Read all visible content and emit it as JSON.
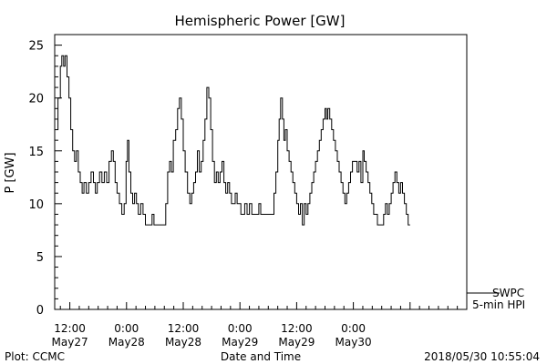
{
  "chart_data": {
    "type": "line",
    "title": "Hemispheric Power [GW]",
    "xlabel": "Date and Time",
    "ylabel": "P [GW]",
    "ylim": [
      0,
      26
    ],
    "yticks": [
      0,
      5,
      10,
      15,
      20,
      25
    ],
    "x_unit": "hours since 2018/05/27 00:00 UT",
    "xlim": [
      8.8,
      96
    ],
    "xticks": [
      {
        "x": 12,
        "time": "12:00",
        "date": "May27"
      },
      {
        "x": 24,
        "time": "0:00",
        "date": "May28"
      },
      {
        "x": 36,
        "time": "12:00",
        "date": "May28"
      },
      {
        "x": 48,
        "time": "0:00",
        "date": "May29"
      },
      {
        "x": 60,
        "time": "12:00",
        "date": "May29"
      },
      {
        "x": 72,
        "time": "0:00",
        "date": "May30"
      }
    ],
    "legend": {
      "position": "bottom-right",
      "line1": "SWPC",
      "line2": "5-min HPI"
    },
    "series": [
      {
        "name": "SWPC 5-min HPI",
        "points": [
          [
            9.0,
            17
          ],
          [
            9.5,
            20
          ],
          [
            10.0,
            23
          ],
          [
            10.3,
            24
          ],
          [
            10.7,
            23
          ],
          [
            11.0,
            24
          ],
          [
            11.4,
            22
          ],
          [
            11.8,
            20
          ],
          [
            12.2,
            17
          ],
          [
            12.6,
            15
          ],
          [
            13.0,
            14
          ],
          [
            13.4,
            15
          ],
          [
            13.8,
            13
          ],
          [
            14.2,
            12
          ],
          [
            14.6,
            11
          ],
          [
            15.0,
            12
          ],
          [
            15.5,
            11
          ],
          [
            16.0,
            12
          ],
          [
            16.5,
            13
          ],
          [
            17.0,
            12
          ],
          [
            17.4,
            11
          ],
          [
            17.8,
            12
          ],
          [
            18.3,
            13
          ],
          [
            18.8,
            12
          ],
          [
            19.3,
            13
          ],
          [
            19.8,
            12
          ],
          [
            20.3,
            14
          ],
          [
            20.8,
            15
          ],
          [
            21.2,
            14
          ],
          [
            21.6,
            12
          ],
          [
            22.0,
            11
          ],
          [
            22.5,
            10
          ],
          [
            23.0,
            9
          ],
          [
            23.5,
            10
          ],
          [
            23.9,
            14
          ],
          [
            24.2,
            16
          ],
          [
            24.5,
            13
          ],
          [
            24.9,
            11
          ],
          [
            25.3,
            10
          ],
          [
            25.7,
            11
          ],
          [
            26.1,
            10
          ],
          [
            26.5,
            9
          ],
          [
            27.0,
            10
          ],
          [
            27.5,
            9
          ],
          [
            28.0,
            8
          ],
          [
            29.0,
            8
          ],
          [
            29.4,
            9
          ],
          [
            29.8,
            8
          ],
          [
            31.0,
            8
          ],
          [
            31.9,
            8
          ],
          [
            32.3,
            10
          ],
          [
            32.7,
            13
          ],
          [
            33.1,
            14
          ],
          [
            33.5,
            13
          ],
          [
            33.9,
            16
          ],
          [
            34.4,
            17
          ],
          [
            34.8,
            19
          ],
          [
            35.2,
            20
          ],
          [
            35.6,
            18
          ],
          [
            36.0,
            15
          ],
          [
            36.4,
            13
          ],
          [
            36.9,
            11
          ],
          [
            37.4,
            10
          ],
          [
            37.8,
            11
          ],
          [
            38.2,
            12
          ],
          [
            38.6,
            13
          ],
          [
            39.0,
            15
          ],
          [
            39.4,
            13
          ],
          [
            39.8,
            14
          ],
          [
            40.2,
            16
          ],
          [
            40.6,
            18
          ],
          [
            41.0,
            21
          ],
          [
            41.4,
            20
          ],
          [
            41.8,
            17
          ],
          [
            42.2,
            14
          ],
          [
            42.6,
            12
          ],
          [
            43.0,
            13
          ],
          [
            43.4,
            12
          ],
          [
            43.8,
            13
          ],
          [
            44.2,
            14
          ],
          [
            44.6,
            12
          ],
          [
            45.0,
            11
          ],
          [
            45.4,
            12
          ],
          [
            45.8,
            11
          ],
          [
            46.2,
            10
          ],
          [
            46.6,
            10
          ],
          [
            47.0,
            11
          ],
          [
            47.4,
            10
          ],
          [
            47.8,
            10
          ],
          [
            48.2,
            9
          ],
          [
            48.6,
            9
          ],
          [
            49.0,
            10
          ],
          [
            49.5,
            9
          ],
          [
            50.0,
            10
          ],
          [
            50.5,
            9
          ],
          [
            51.5,
            9
          ],
          [
            52.0,
            10
          ],
          [
            52.4,
            9
          ],
          [
            53.0,
            9
          ],
          [
            54.5,
            9
          ],
          [
            55.2,
            11
          ],
          [
            55.6,
            13
          ],
          [
            56.0,
            16
          ],
          [
            56.3,
            18
          ],
          [
            56.6,
            20
          ],
          [
            57.0,
            18
          ],
          [
            57.3,
            16
          ],
          [
            57.6,
            17
          ],
          [
            58.0,
            15
          ],
          [
            58.4,
            14
          ],
          [
            58.8,
            13
          ],
          [
            59.2,
            12
          ],
          [
            59.6,
            11
          ],
          [
            60.0,
            10
          ],
          [
            60.4,
            9
          ],
          [
            60.8,
            10
          ],
          [
            61.2,
            8
          ],
          [
            61.6,
            10
          ],
          [
            62.0,
            9
          ],
          [
            62.4,
            10
          ],
          [
            62.8,
            11
          ],
          [
            63.2,
            12
          ],
          [
            63.6,
            13
          ],
          [
            64.0,
            14
          ],
          [
            64.4,
            15
          ],
          [
            64.8,
            16
          ],
          [
            65.2,
            17
          ],
          [
            65.6,
            18
          ],
          [
            66.0,
            19
          ],
          [
            66.3,
            18
          ],
          [
            66.6,
            19
          ],
          [
            67.0,
            18
          ],
          [
            67.4,
            17
          ],
          [
            67.8,
            16
          ],
          [
            68.2,
            15
          ],
          [
            68.6,
            14
          ],
          [
            69.0,
            13
          ],
          [
            69.4,
            12
          ],
          [
            69.8,
            11
          ],
          [
            70.2,
            10
          ],
          [
            70.6,
            11
          ],
          [
            71.0,
            12
          ],
          [
            71.4,
            13
          ],
          [
            71.8,
            14
          ],
          [
            72.4,
            14
          ],
          [
            72.8,
            13
          ],
          [
            73.2,
            14
          ],
          [
            73.6,
            12
          ],
          [
            74.0,
            15
          ],
          [
            74.3,
            14
          ],
          [
            74.7,
            13
          ],
          [
            75.1,
            12
          ],
          [
            75.5,
            11
          ],
          [
            75.9,
            10
          ],
          [
            76.3,
            9
          ],
          [
            76.7,
            9
          ],
          [
            77.1,
            8
          ],
          [
            78.0,
            8
          ],
          [
            78.4,
            9
          ],
          [
            78.8,
            10
          ],
          [
            79.2,
            9
          ],
          [
            79.6,
            10
          ],
          [
            80.0,
            11
          ],
          [
            80.4,
            12
          ],
          [
            80.8,
            13
          ],
          [
            81.2,
            12
          ],
          [
            81.6,
            11
          ],
          [
            82.0,
            12
          ],
          [
            82.4,
            11
          ],
          [
            82.8,
            10
          ],
          [
            83.2,
            9
          ],
          [
            83.6,
            8
          ],
          [
            84.0,
            8
          ]
        ]
      }
    ]
  },
  "footer": {
    "left": "Plot: CCMC",
    "center": "Date and Time",
    "right": "2018/05/30 10:55:04"
  }
}
